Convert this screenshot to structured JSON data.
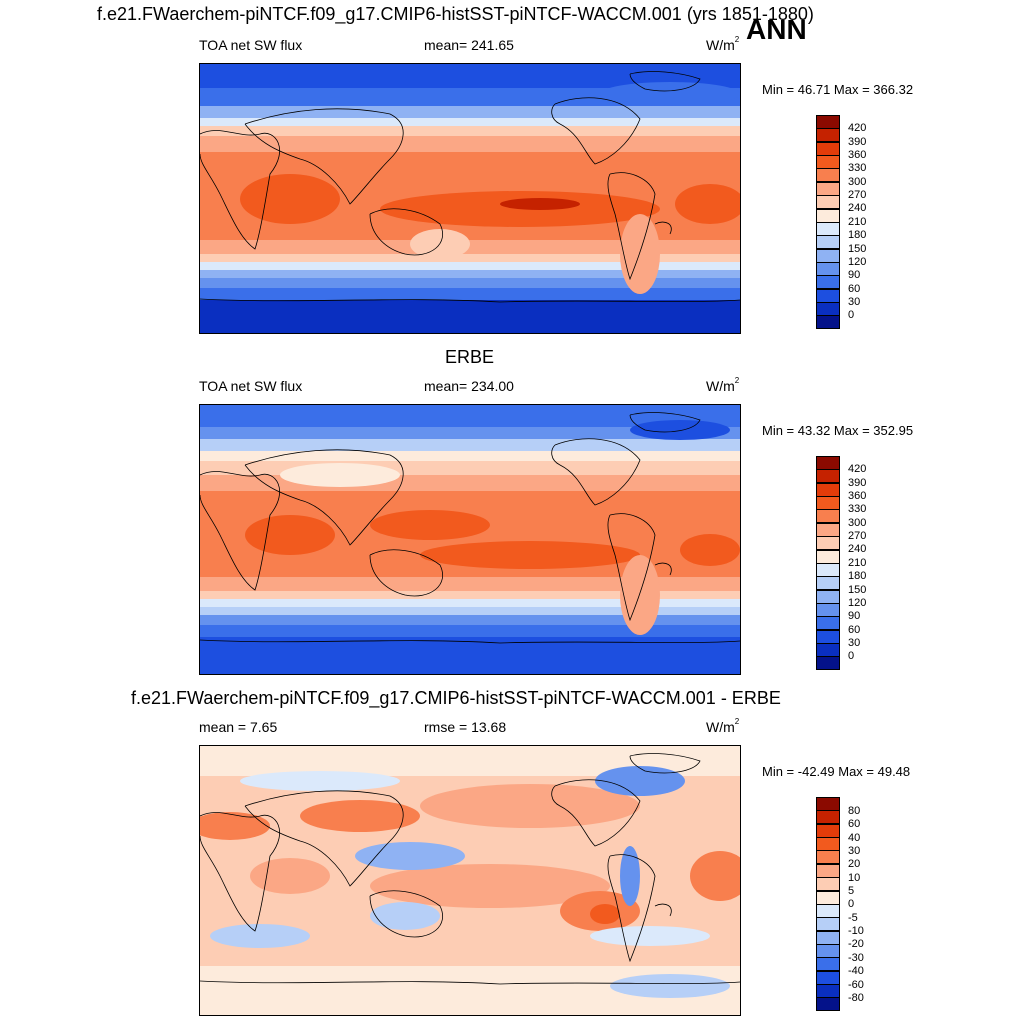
{
  "header": {
    "main_title": "f.e21.FWaerchem-piNTCF.f09_g17.CMIP6-histSST-piNTCF-WACCM.001 (yrs 1851-1880)",
    "season": "ANN"
  },
  "panels": [
    {
      "id": "model",
      "section_title": "",
      "left_label": "TOA net SW flux",
      "center_label": "mean= 241.65",
      "unit_base": "W/m",
      "unit_exp": "2",
      "minmax": "Min =  46.71 Max = 366.32",
      "colorbar_labels": [
        "420",
        "390",
        "360",
        "330",
        "300",
        "270",
        "240",
        "210",
        "180",
        "150",
        "120",
        "90",
        "60",
        "30",
        "0"
      ],
      "colorbar_colors": [
        "#8b0a00",
        "#c52200",
        "#e33c0a",
        "#f25a1e",
        "#f87f4e",
        "#fba785",
        "#fdcdb4",
        "#fdebdc",
        "#dbe9fb",
        "#b6cff7",
        "#8fb2f3",
        "#6592ee",
        "#3a6fea",
        "#1d4fe0",
        "#0a2fc0",
        "#04128a"
      ]
    },
    {
      "id": "obs",
      "section_title": "ERBE",
      "left_label": "TOA net SW flux",
      "center_label": "mean= 234.00",
      "unit_base": "W/m",
      "unit_exp": "2",
      "minmax": "Min =  43.32 Max = 352.95",
      "colorbar_labels": [
        "420",
        "390",
        "360",
        "330",
        "300",
        "270",
        "240",
        "210",
        "180",
        "150",
        "120",
        "90",
        "60",
        "30",
        "0"
      ],
      "colorbar_colors": [
        "#8b0a00",
        "#c52200",
        "#e33c0a",
        "#f25a1e",
        "#f87f4e",
        "#fba785",
        "#fdcdb4",
        "#fdebdc",
        "#dbe9fb",
        "#b6cff7",
        "#8fb2f3",
        "#6592ee",
        "#3a6fea",
        "#1d4fe0",
        "#0a2fc0",
        "#04128a"
      ]
    },
    {
      "id": "diff",
      "section_title": "f.e21.FWaerchem-piNTCF.f09_g17.CMIP6-histSST-piNTCF-WACCM.001 - ERBE",
      "left_label": "mean =   7.65",
      "center_label": "rmse =  13.68",
      "unit_base": "W/m",
      "unit_exp": "2",
      "minmax": "Min = -42.49 Max =  49.48",
      "colorbar_labels": [
        "80",
        "60",
        "40",
        "30",
        "20",
        "10",
        "5",
        "0",
        "-5",
        "-10",
        "-20",
        "-30",
        "-40",
        "-60",
        "-80"
      ],
      "colorbar_colors": [
        "#8b0a00",
        "#c52200",
        "#e33c0a",
        "#f25a1e",
        "#f87f4e",
        "#fba785",
        "#fdcdb4",
        "#fdebdc",
        "#dbe9fb",
        "#b6cff7",
        "#8fb2f3",
        "#6592ee",
        "#3a6fea",
        "#1d4fe0",
        "#0a2fc0",
        "#04128a"
      ]
    }
  ]
}
